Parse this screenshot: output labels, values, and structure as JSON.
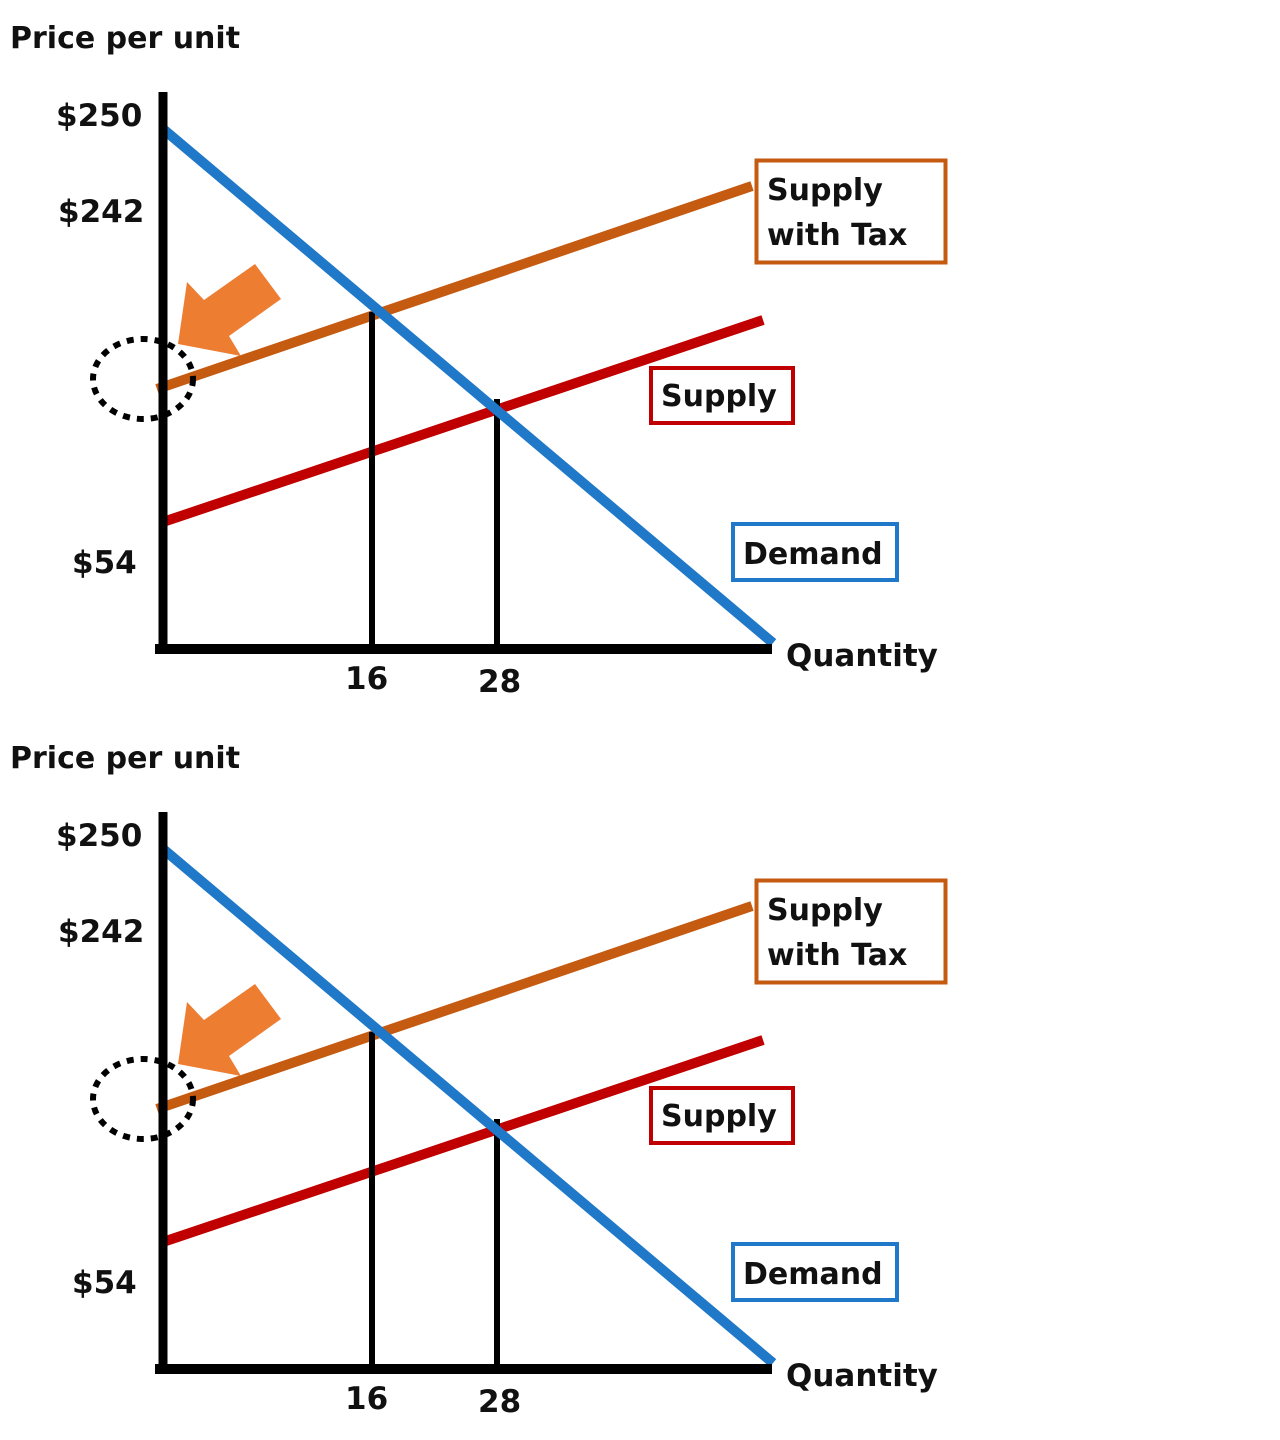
{
  "chart_data": [
    {
      "type": "line",
      "ylabel": "Price per unit",
      "xlabel": "Quantity",
      "y_ticks": [
        "$250",
        "$242",
        "$54"
      ],
      "x_ticks": [
        "16",
        "28"
      ],
      "series": [
        {
          "name": "Demand",
          "color": "#1f78c8",
          "x": [
            0,
            50
          ],
          "y": [
            250,
            0
          ]
        },
        {
          "name": "Supply",
          "color": "#c00000",
          "x": [
            0,
            49
          ],
          "y": [
            54,
            146
          ]
        },
        {
          "name": "Supply with Tax",
          "color": "#c55a11",
          "x": [
            0,
            48
          ],
          "y": [
            116,
            208
          ]
        }
      ],
      "equilibrium_quantities": [
        16,
        28
      ],
      "annotations": [
        "dashed circle at Supply with Tax y-intercept",
        "orange arrow pointing to price axis"
      ],
      "arrow_color": "#ed7d31",
      "axis_color": "#000000",
      "xlim": [
        0,
        50
      ],
      "ylim": [
        0,
        260
      ],
      "grid": false,
      "legend": "labels boxed next to each line"
    },
    {
      "type": "line",
      "ylabel": "Price per unit",
      "xlabel": "Quantity",
      "y_ticks": [
        "$250",
        "$242",
        "$54"
      ],
      "x_ticks": [
        "16",
        "28"
      ],
      "series": [
        {
          "name": "Demand",
          "color": "#1f78c8",
          "x": [
            0,
            50
          ],
          "y": [
            250,
            0
          ]
        },
        {
          "name": "Supply",
          "color": "#c00000",
          "x": [
            0,
            49
          ],
          "y": [
            54,
            146
          ]
        },
        {
          "name": "Supply with Tax",
          "color": "#c55a11",
          "x": [
            0,
            48
          ],
          "y": [
            116,
            208
          ]
        }
      ],
      "equilibrium_quantities": [
        16,
        28
      ],
      "annotations": [
        "dashed circle at Supply with Tax y-intercept",
        "orange arrow pointing to price axis"
      ],
      "arrow_color": "#ed7d31",
      "axis_color": "#000000",
      "xlim": [
        0,
        50
      ],
      "ylim": [
        0,
        260
      ],
      "grid": false,
      "legend": "labels boxed next to each line"
    }
  ]
}
